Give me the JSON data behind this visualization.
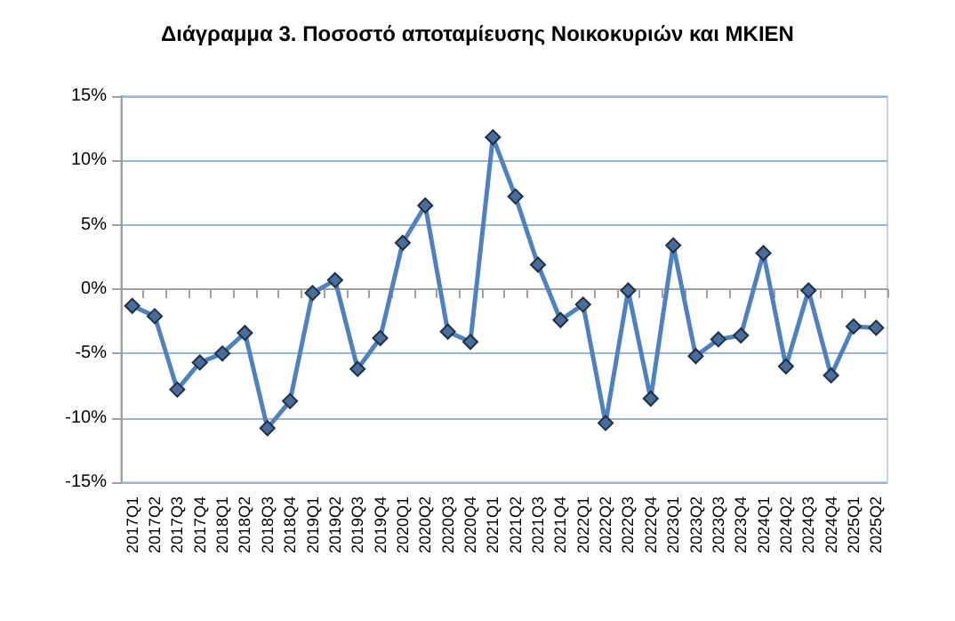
{
  "chart_data": {
    "type": "line",
    "title": "Διάγραμμα 3. Ποσοστό αποταμίευσης Νοικοκυριών και ΜΚΙΕΝ",
    "categories": [
      "2017Q1",
      "2017Q2",
      "2017Q3",
      "2017Q4",
      "2018Q1",
      "2018Q2",
      "2018Q3",
      "2018Q4",
      "2019Q1",
      "2019Q2",
      "2019Q3",
      "2019Q4",
      "2020Q1",
      "2020Q2",
      "2020Q3",
      "2020Q4",
      "2021Q1",
      "2021Q2",
      "2021Q3",
      "2021Q4",
      "2022Q1",
      "2022Q2",
      "2022Q3",
      "2022Q4",
      "2023Q1",
      "2023Q2",
      "2023Q3",
      "2023Q4",
      "2024Q1",
      "2024Q2",
      "2024Q3",
      "2024Q4",
      "2025Q1",
      "2025Q2"
    ],
    "series": [
      {
        "color": "#4f81bd",
        "values": [
          -1.3,
          -2.1,
          -7.8,
          -5.7,
          -5.0,
          -3.4,
          -10.8,
          -8.7,
          -0.3,
          0.7,
          -6.2,
          -3.8,
          3.6,
          6.5,
          -3.3,
          -4.1,
          11.8,
          7.2,
          1.9,
          -2.4,
          -1.2,
          -10.4,
          -0.1,
          -8.5,
          3.4,
          -5.2,
          -3.9,
          -3.6,
          2.8,
          -6.0,
          -0.1,
          -6.7,
          -2.9,
          -3.0
        ]
      }
    ],
    "ylim": [
      -15,
      15
    ],
    "yticks": [
      {
        "value": -15,
        "label": "-15%"
      },
      {
        "value": -10,
        "label": "-10%"
      },
      {
        "value": -5,
        "label": "-5%"
      },
      {
        "value": 0,
        "label": "0%"
      },
      {
        "value": 5,
        "label": "5%"
      },
      {
        "value": 10,
        "label": "10%"
      },
      {
        "value": 15,
        "label": "15%"
      }
    ],
    "grid": "y",
    "marker": "diamond",
    "line_style": "solid"
  }
}
